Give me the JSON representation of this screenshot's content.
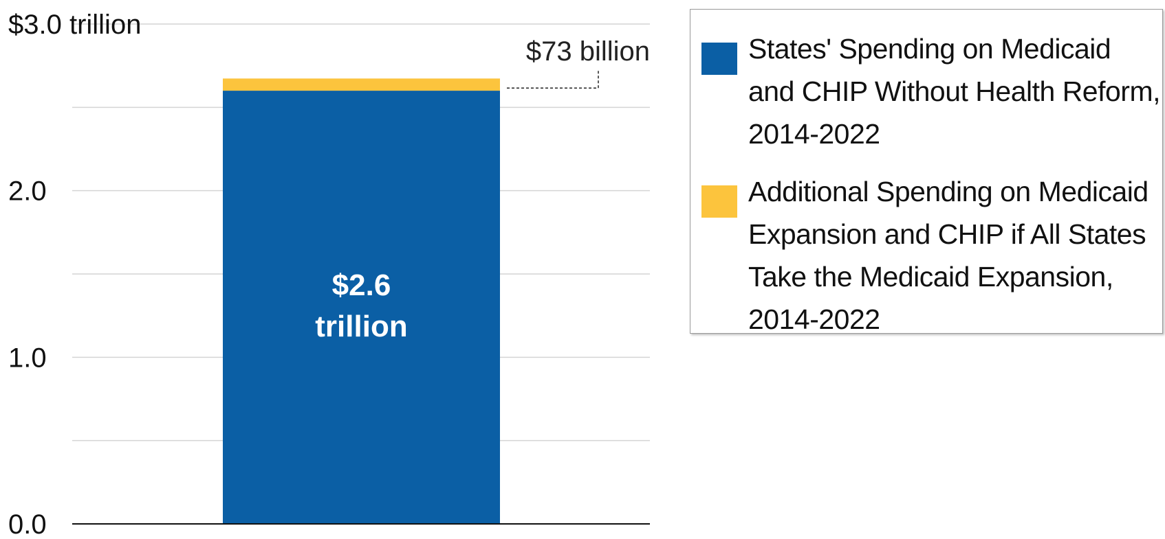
{
  "chart_data": {
    "type": "bar",
    "stacked": true,
    "categories": [
      ""
    ],
    "series": [
      {
        "name": "States' Spending on Medicaid and CHIP Without Health Reform, 2014-2022",
        "values": [
          2.6
        ],
        "color": "#0b5fa5"
      },
      {
        "name": "Additional Spending on Medicaid Expansion and CHIP if All States Take the Medicaid Expansion, 2014-2022",
        "values": [
          0.073
        ],
        "color": "#fcc43d"
      }
    ],
    "ylim": [
      0,
      3.0
    ],
    "y_ticks": [
      {
        "value": 0,
        "label": "0.0"
      },
      {
        "value": 1.0,
        "label": "1.0"
      },
      {
        "value": 2.0,
        "label": "2.0"
      },
      {
        "value": 3.0,
        "label": "$3.0 trillion"
      }
    ],
    "grid_values": [
      0.5,
      1.0,
      1.5,
      2.0,
      2.5,
      3.0
    ],
    "bar_labels": [
      "$2.6",
      "trillion"
    ],
    "annotation": "$73 billion",
    "grid": true,
    "legend_position": "top-right"
  }
}
